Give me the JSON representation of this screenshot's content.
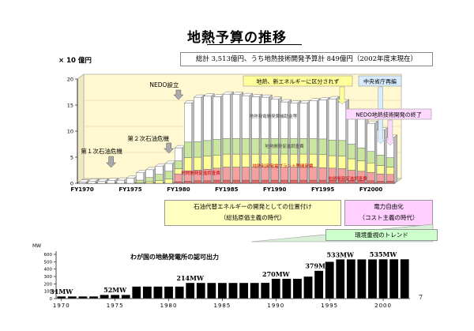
{
  "title": "地熱予算の推移",
  "unit_label": {
    "prefix": "× 10",
    "suffix": "億円"
  },
  "summary": "総計 3,513億円、うち地熱技術開発予算計 849億円（2002年度末現在）",
  "page_number": "7",
  "annotations": {
    "nedo": "NEDO設立",
    "oil2": "第２次石油危機",
    "oil1": "第１次石油危機",
    "category_change": "地熱、新エネルギーに区分されず",
    "reorg": "中央省庁再編",
    "nedo_end": "NEDO地熱技術開発の終了"
  },
  "eras": {
    "era1_line1": "石油代替エネルギーの開発としての位置付け",
    "era1_line2": "（総括原価主義の時代）",
    "era2_line1": "電力自由化",
    "era2_line2": "（コスト主義の時代）",
    "env": "環境重視のトレンド"
  },
  "colors": {
    "seg1": "#e06666",
    "seg2": "#f4a0a0",
    "seg3": "#ffff99",
    "seg4": "#c8e6a0",
    "seg5": "#ffffff",
    "chart_bg": "#fff8d0",
    "lower_bar": "#000000"
  },
  "chart_data": [
    {
      "type": "bar",
      "stacked": true,
      "x": [
        1970,
        1971,
        1972,
        1973,
        1974,
        1975,
        1976,
        1977,
        1978,
        1979,
        1980,
        1981,
        1982,
        1983,
        1984,
        1985,
        1986,
        1987,
        1988,
        1989,
        1990,
        1991,
        1992,
        1993,
        1994,
        1995,
        1996,
        1997,
        1998,
        1999,
        2000,
        2001,
        2002
      ],
      "tick_labels": [
        "FY1970",
        "FY1975",
        "FY1980",
        "FY1985",
        "FY1990",
        "FY1995",
        "FY2000"
      ],
      "tick_years": [
        1970,
        1975,
        1980,
        1985,
        1990,
        1995,
        2000
      ],
      "ylim": [
        0,
        20
      ],
      "yticks": [
        0,
        5,
        10,
        15,
        20
      ],
      "series": [
        {
          "name": "地熱開発促進調査費",
          "values": [
            0,
            0,
            0,
            0,
            0,
            0,
            0,
            0,
            0,
            0,
            0.3,
            0.4,
            0.5,
            0.5,
            0.6,
            0.6,
            0.6,
            0.6,
            0.6,
            0.6,
            0.6,
            0.6,
            0.6,
            0.6,
            0.6,
            0.6,
            0.6,
            0.6,
            0.5,
            0.5,
            0.5,
            0.4,
            0.4
          ]
        },
        {
          "name": "地熱利用発電プラント等開発費",
          "values": [
            0,
            0,
            0,
            0,
            0,
            0,
            0,
            0,
            0,
            0,
            1.5,
            2.0,
            2.0,
            2.2,
            2.3,
            2.5,
            2.5,
            2.5,
            2.5,
            2.5,
            2.5,
            2.5,
            2.5,
            2.5,
            2.5,
            2.4,
            2.3,
            2.2,
            2.0,
            1.8,
            1.6,
            1.4,
            1.3
          ]
        },
        {
          "name": "地熱開発促進調査費",
          "values": [
            0,
            0,
            0,
            0,
            0,
            0,
            0.1,
            0.3,
            0.5,
            0.8,
            1.0,
            2.5,
            2.5,
            2.5,
            2.5,
            2.5,
            2.5,
            2.5,
            2.5,
            2.5,
            2.5,
            2.5,
            2.5,
            2.5,
            2.5,
            2.5,
            2.4,
            2.4,
            2.2,
            2.0,
            1.8,
            1.6,
            1.4
          ]
        },
        {
          "name": "地熱開発促進調査費",
          "values": [
            0,
            0,
            0,
            0,
            0,
            0,
            0.5,
            0.8,
            1.2,
            1.5,
            1.5,
            3.0,
            3.0,
            3.0,
            3.0,
            3.0,
            3.0,
            3.0,
            3.0,
            3.0,
            3.0,
            3.0,
            3.0,
            3.0,
            3.0,
            3.0,
            3.0,
            3.0,
            2.8,
            2.5,
            2.2,
            2.0,
            1.8
          ]
        },
        {
          "name": "地熱発電開発費補助金等",
          "values": [
            0.2,
            0.4,
            0.4,
            0.5,
            0.6,
            1.0,
            1.4,
            1.5,
            1.6,
            1.5,
            2.5,
            7.5,
            8.5,
            8.5,
            8.2,
            8.5,
            8.4,
            8.2,
            8.0,
            7.9,
            7.5,
            7.0,
            6.8,
            6.8,
            7.2,
            7.5,
            7.9,
            7.4,
            6.2,
            5.8,
            5.4,
            4.8,
            3.9
          ]
        }
      ]
    },
    {
      "type": "bar",
      "title": "わが国の地熱発電所の認可出力",
      "ylabel": "MW",
      "ylim": [
        0,
        600
      ],
      "yticks": [
        0,
        100,
        200,
        300,
        400,
        500,
        600
      ],
      "x": [
        1970,
        1971,
        1972,
        1973,
        1974,
        1975,
        1976,
        1977,
        1978,
        1979,
        1980,
        1981,
        1982,
        1983,
        1984,
        1985,
        1986,
        1987,
        1988,
        1989,
        1990,
        1991,
        1992,
        1993,
        1994,
        1995,
        1996,
        1997,
        1998,
        1999,
        2000,
        2001,
        2002
      ],
      "values": [
        31,
        31,
        31,
        31,
        52,
        52,
        52,
        165,
        165,
        165,
        165,
        165,
        214,
        214,
        214,
        214,
        214,
        214,
        214,
        215,
        270,
        270,
        270,
        300,
        379,
        500,
        533,
        533,
        533,
        533,
        535,
        535,
        535
      ],
      "tick_years": [
        1970,
        1975,
        1980,
        1985,
        1990,
        1995,
        2000
      ],
      "tick_labels": [
        "1970",
        "1975",
        "1980",
        "1985",
        "1990",
        "1995",
        "2000"
      ],
      "data_labels": [
        {
          "year": 1970,
          "text": "31MW"
        },
        {
          "year": 1975,
          "text": "52MW"
        },
        {
          "year": 1982,
          "text": "214MW"
        },
        {
          "year": 1990,
          "text": "270MW"
        },
        {
          "year": 1994,
          "text": "379MW"
        },
        {
          "year": 1996,
          "text": "533MW"
        },
        {
          "year": 2000,
          "text": "535MW"
        }
      ]
    }
  ]
}
